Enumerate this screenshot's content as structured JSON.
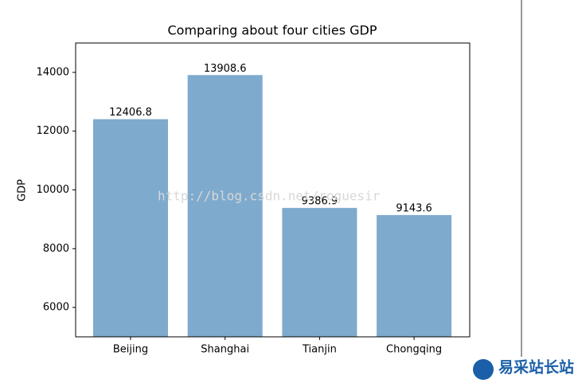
{
  "chart_data": {
    "type": "bar",
    "title": "Comparing about four cities GDP",
    "y_label": "GDP",
    "categories": [
      "Beijing",
      "Shanghai",
      "Tianjin",
      "Chongqing"
    ],
    "values": [
      12406.8,
      13908.6,
      9386.9,
      9143.6
    ],
    "color": "#7eaacd",
    "ylim": [
      5000,
      15000
    ],
    "yticks": [
      6000,
      8000,
      10000,
      12000,
      14000
    ],
    "grid": false,
    "watermark": "http://blog.csdn.net/roguesir",
    "logo": "易采站长站"
  }
}
